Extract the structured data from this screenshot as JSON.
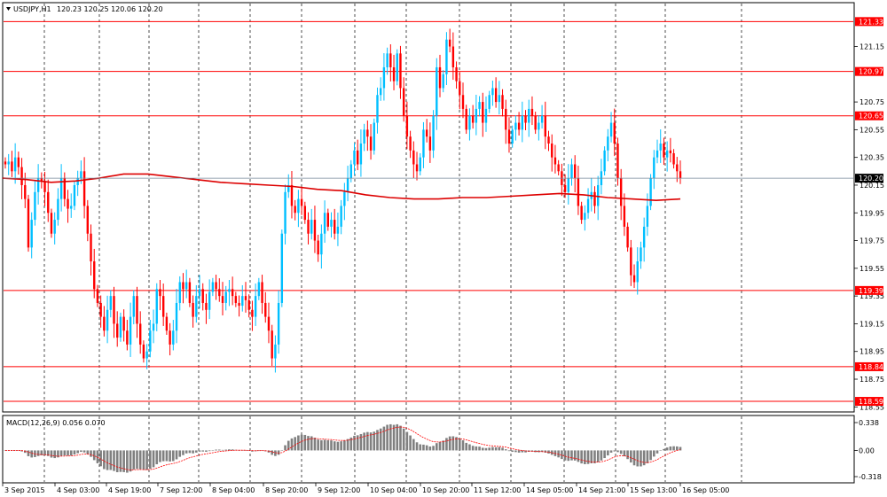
{
  "header": {
    "symbol": "USDJPY,H1",
    "ohlc": "120.23 120.25 120.06 120.20"
  },
  "macd": {
    "label": "MACD(12,26,9) 0.056 0.070",
    "ticks": [
      {
        "value": 0.338,
        "label": "0.338"
      },
      {
        "value": 0.0,
        "label": "0.00"
      },
      {
        "value": -0.318,
        "label": "-0.318"
      }
    ]
  },
  "price_axis": {
    "ticks": [
      "121.15",
      "120.75",
      "120.55",
      "120.35",
      "120.15",
      "119.95",
      "119.75",
      "119.55",
      "119.35",
      "119.15",
      "118.95",
      "118.75",
      "118.55"
    ],
    "tick_values": [
      121.15,
      120.75,
      120.55,
      120.35,
      120.15,
      119.95,
      119.75,
      119.55,
      119.35,
      119.15,
      118.95,
      118.75,
      118.55
    ],
    "current_price": "120.20",
    "current_value": 120.2
  },
  "levels": [
    {
      "value": 121.33,
      "label": "121.33"
    },
    {
      "value": 120.97,
      "label": "120.97"
    },
    {
      "value": 120.65,
      "label": "120.65"
    },
    {
      "value": 119.39,
      "label": "119.39"
    },
    {
      "value": 118.84,
      "label": "118.84"
    },
    {
      "value": 118.59,
      "label": "118.59"
    }
  ],
  "time_axis": {
    "labels": [
      "3 Sep 2015",
      "4 Sep 03:00",
      "4 Sep 19:00",
      "7 Sep 12:00",
      "8 Sep 04:00",
      "8 Sep 20:00",
      "9 Sep 12:00",
      "10 Sep 04:00",
      "10 Sep 20:00",
      "11 Sep 12:00",
      "14 Sep 05:00",
      "14 Sep 21:00",
      "15 Sep 13:00",
      "16 Sep 05:00"
    ]
  },
  "colors": {
    "bull": "#00bfff",
    "bear": "#ff0000",
    "level": "#ff0000",
    "ma": "#dd0000",
    "grid": "#000000",
    "hist": "#808080",
    "signal": "#ff0000",
    "current_bg": "#000000",
    "current_line": "#778899"
  },
  "chart_data": {
    "type": "candlestick",
    "ylim": [
      118.52,
      121.46
    ],
    "closes": [
      120.3,
      120.32,
      120.25,
      120.35,
      120.28,
      120.15,
      120.05,
      119.7,
      119.9,
      120.1,
      120.2,
      120.18,
      120.1,
      119.95,
      119.8,
      119.9,
      120.05,
      120.2,
      120.05,
      119.98,
      120.0,
      120.15,
      120.2,
      120.25,
      120.0,
      119.8,
      119.6,
      119.4,
      119.3,
      119.2,
      119.1,
      119.25,
      119.35,
      119.15,
      119.05,
      119.2,
      119.1,
      119.0,
      119.2,
      119.35,
      119.15,
      119.0,
      118.9,
      118.95,
      119.1,
      119.15,
      119.4,
      119.35,
      119.2,
      119.1,
      119.0,
      119.1,
      119.3,
      119.45,
      119.4,
      119.45,
      119.3,
      119.2,
      119.35,
      119.4,
      119.3,
      119.25,
      119.38,
      119.45,
      119.4,
      119.35,
      119.3,
      119.38,
      119.4,
      119.35,
      119.3,
      119.28,
      119.35,
      119.32,
      119.25,
      119.2,
      119.35,
      119.45,
      119.3,
      119.2,
      119.1,
      118.9,
      119.0,
      119.3,
      119.8,
      120.1,
      120.15,
      120.0,
      119.95,
      120.05,
      120.0,
      119.9,
      119.8,
      119.9,
      119.75,
      119.65,
      119.8,
      119.95,
      119.85,
      119.9,
      119.8,
      119.85,
      120.0,
      120.1,
      120.2,
      120.3,
      120.4,
      120.3,
      120.45,
      120.55,
      120.5,
      120.4,
      120.6,
      120.8,
      120.85,
      121.0,
      121.1,
      121.0,
      120.9,
      121.1,
      120.85,
      120.65,
      120.5,
      120.4,
      120.3,
      120.25,
      120.35,
      120.55,
      120.5,
      120.4,
      120.65,
      121.0,
      120.85,
      120.95,
      121.2,
      121.15,
      121.0,
      120.9,
      120.8,
      120.7,
      120.55,
      120.65,
      120.6,
      120.7,
      120.75,
      120.6,
      120.7,
      120.8,
      120.85,
      120.75,
      120.8,
      120.7,
      120.55,
      120.45,
      120.55,
      120.6,
      120.55,
      120.65,
      120.6,
      120.7,
      120.65,
      120.55,
      120.6,
      120.65,
      120.5,
      120.45,
      120.35,
      120.3,
      120.25,
      120.15,
      120.1,
      120.2,
      120.3,
      120.2,
      120.0,
      119.9,
      119.95,
      120.05,
      120.1,
      120.0,
      120.15,
      120.25,
      120.4,
      120.5,
      120.6,
      120.45,
      120.2,
      120.0,
      119.85,
      119.7,
      119.5,
      119.45,
      119.6,
      119.7,
      119.85,
      120.0,
      120.2,
      120.35,
      120.4,
      120.45,
      120.35,
      120.4,
      120.38,
      120.3,
      120.25,
      120.2
    ],
    "ma_values": [
      120.2,
      120.19,
      120.17,
      120.18,
      120.2,
      120.23,
      120.23,
      120.21,
      120.19,
      120.17,
      120.16,
      120.15,
      120.14,
      120.12,
      120.11,
      120.08,
      120.06,
      120.05,
      120.05,
      120.06,
      120.06,
      120.07,
      120.08,
      120.09,
      120.08,
      120.06,
      120.05,
      120.04,
      120.05
    ]
  }
}
